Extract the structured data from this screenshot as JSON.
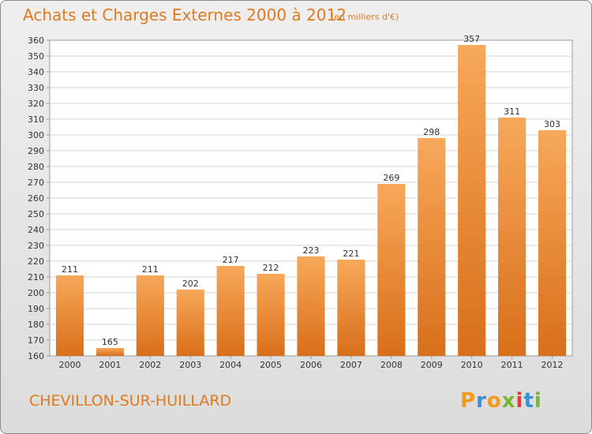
{
  "chart_data": {
    "type": "bar",
    "title": "Achats et Charges Externes 2000 à 2012",
    "subtitle": "(en milliers d'€)",
    "categories": [
      "2000",
      "2001",
      "2002",
      "2003",
      "2004",
      "2005",
      "2006",
      "2007",
      "2008",
      "2009",
      "2010",
      "2011",
      "2012"
    ],
    "values": [
      211,
      165,
      211,
      202,
      217,
      212,
      223,
      221,
      269,
      298,
      357,
      311,
      303
    ],
    "ylim": [
      160,
      360
    ],
    "ytick_step": 10,
    "grid": true,
    "bar_color": "#f0902e",
    "bar_color_light": "#f7a85a",
    "bar_color_dark": "#d86f1a",
    "xlabel": "",
    "ylabel": ""
  },
  "footer": {
    "commune": "CHEVILLON-SUR-HUILLARD",
    "logo_text": "Proxiti",
    "logo_colors": [
      "#f29a1d",
      "#3a8fd6",
      "#f29a1d",
      "#7ab82b",
      "#e43a2f",
      "#3a8fd6",
      "#7ab82b"
    ]
  }
}
